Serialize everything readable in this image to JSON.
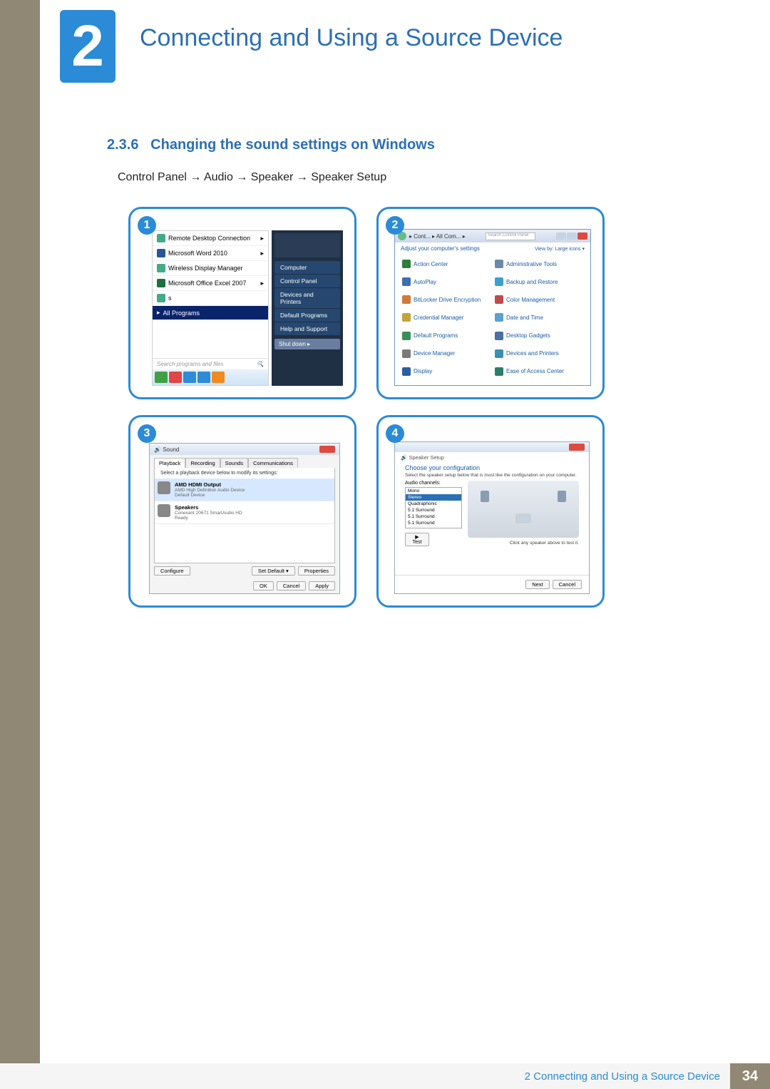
{
  "chapter": {
    "number": "2",
    "title": "Connecting and Using a Source Device"
  },
  "section": {
    "number": "2.3.6",
    "title": "Changing the sound settings on Windows"
  },
  "breadcrumb": "Control Panel  →  Audio  →  Speaker  →  Speaker Setup",
  "footer": {
    "label": "2 Connecting and Using a Source Device",
    "page": "34"
  },
  "panel1": {
    "num": "1",
    "left_items": [
      {
        "label": "Remote Desktop Connection",
        "cls": "rdc",
        "chev": true
      },
      {
        "label": "Microsoft Word 2010",
        "cls": "word",
        "chev": true
      },
      {
        "label": "Wireless Display Manager",
        "cls": "wdm",
        "chev": false
      },
      {
        "label": "Microsoft Office Excel 2007",
        "cls": "excel",
        "chev": true
      },
      {
        "label": "s",
        "cls": "s",
        "chev": false
      }
    ],
    "all_programs": "All Programs",
    "search_placeholder": "Search programs and files",
    "right_items": [
      "Computer",
      "Control Panel",
      "Devices and Printers",
      "Default Programs",
      "Help and Support"
    ],
    "shutdown": "Shut down",
    "taskbar_colors": [
      "#3fa142",
      "#e04646",
      "#2e8bd6",
      "#2e8bd6",
      "#f18a1f"
    ]
  },
  "panel2": {
    "num": "2",
    "crumb": "▸ Cont... ▸ All Com... ▸",
    "search_placeholder": "Search Control Panel",
    "subtitle": "Adjust your computer's settings",
    "view": "View by: Large icons ▾",
    "items": [
      {
        "label": "Action Center",
        "color": "#2f7e3a"
      },
      {
        "label": "Administrative Tools",
        "color": "#6b8aa8"
      },
      {
        "label": "AutoPlay",
        "color": "#3a6fb0"
      },
      {
        "label": "Backup and Restore",
        "color": "#3aa0d0"
      },
      {
        "label": "BitLocker Drive Encryption",
        "color": "#d07a3a"
      },
      {
        "label": "Color Management",
        "color": "#c04a4a"
      },
      {
        "label": "Credential Manager",
        "color": "#c0a53a"
      },
      {
        "label": "Date and Time",
        "color": "#5aa0d0"
      },
      {
        "label": "Default Programs",
        "color": "#3a8f5a"
      },
      {
        "label": "Desktop Gadgets",
        "color": "#4a6fa0"
      },
      {
        "label": "Device Manager",
        "color": "#7a7a7a"
      },
      {
        "label": "Devices and Printers",
        "color": "#3a8fb0"
      },
      {
        "label": "Display",
        "color": "#2a5fa0"
      },
      {
        "label": "Ease of Access Center",
        "color": "#2a7f6a"
      }
    ]
  },
  "panel3": {
    "num": "3",
    "title": "Sound",
    "tabs": [
      "Playback",
      "Recording",
      "Sounds",
      "Communications"
    ],
    "hint": "Select a playback device below to modify its settings:",
    "devices": [
      {
        "name": "AMD HDMI Output",
        "desc": "AMD High Definition Audio Device",
        "status": "Default Device",
        "selected": true
      },
      {
        "name": "Speakers",
        "desc": "Conexant 20671 SmartAudio HD",
        "status": "Ready",
        "selected": false
      }
    ],
    "buttons": {
      "configure": "Configure",
      "setdefault": "Set Default ▾",
      "properties": "Properties",
      "ok": "OK",
      "cancel": "Cancel",
      "apply": "Apply"
    }
  },
  "panel4": {
    "num": "4",
    "crumb": "Speaker Setup",
    "heading": "Choose your configuration",
    "hint": "Select the speaker setup below that is most like the configuration on your computer.",
    "channels_label": "Audio channels:",
    "channels": [
      "Mono",
      "Stereo",
      "Quadraphonic",
      "5.1 Surround",
      "5.1 Surround",
      "5.1 Surround"
    ],
    "selected_index": 1,
    "test": "▶ Test",
    "note": "Click any speaker above to test it.",
    "buttons": {
      "next": "Next",
      "cancel": "Cancel"
    }
  }
}
